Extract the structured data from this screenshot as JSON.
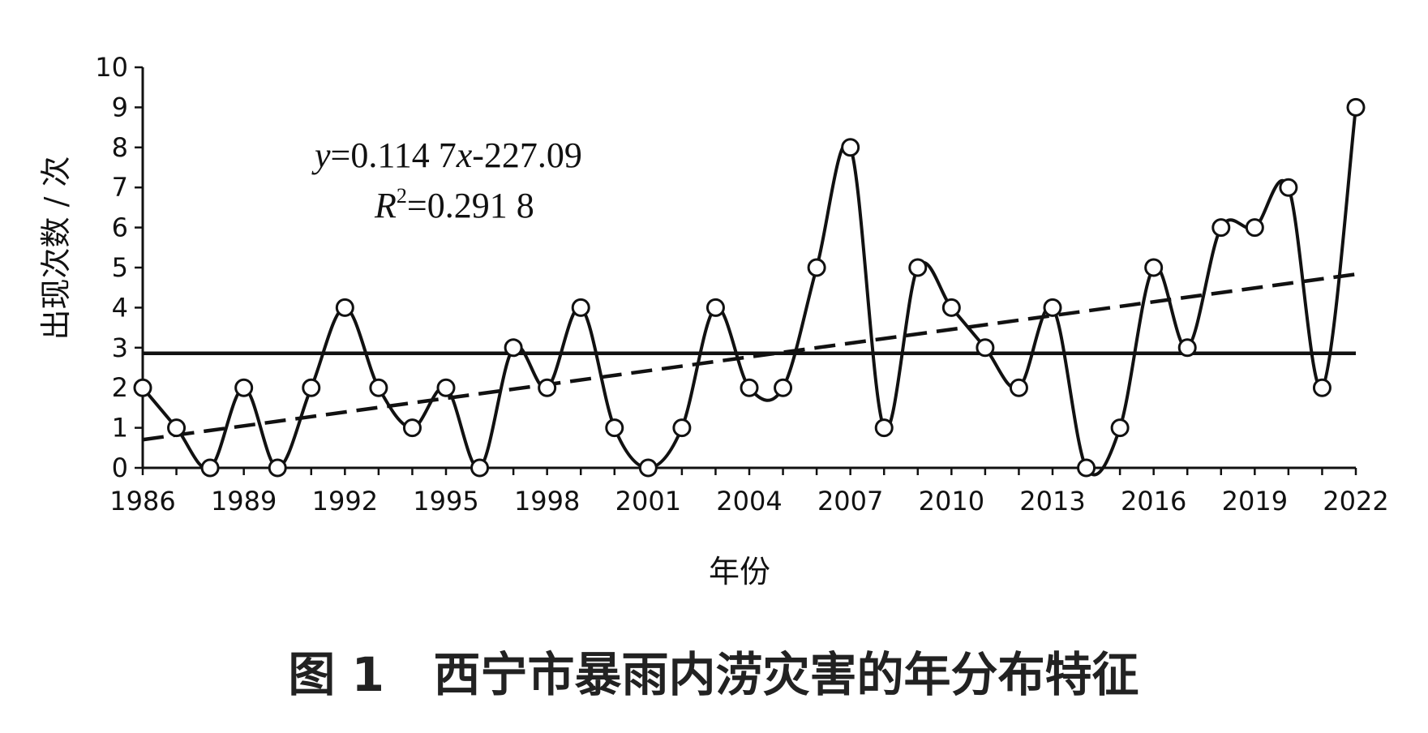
{
  "figure_caption": "图 1   西宁市暴雨内涝灾害的年分布特征",
  "chart_data": {
    "type": "line",
    "title": "",
    "xlabel": "年份",
    "ylabel": "出现次数 / 次",
    "x": [
      1986,
      1987,
      1988,
      1989,
      1990,
      1991,
      1992,
      1993,
      1994,
      1995,
      1996,
      1997,
      1998,
      1999,
      2000,
      2001,
      2002,
      2003,
      2004,
      2005,
      2006,
      2007,
      2008,
      2009,
      2010,
      2011,
      2012,
      2013,
      2014,
      2015,
      2016,
      2017,
      2018,
      2019,
      2020,
      2021,
      2022
    ],
    "series": [
      {
        "values": [
          2,
          1,
          0,
          2,
          0,
          2,
          4,
          2,
          1,
          2,
          0,
          3,
          2,
          4,
          1,
          0,
          1,
          4,
          2,
          2,
          5,
          8,
          1,
          5,
          4,
          3,
          2,
          4,
          0,
          1,
          5,
          3,
          6,
          6,
          7,
          2,
          9
        ],
        "style": "smooth-line-with-open-circles"
      }
    ],
    "mean_line": 2.86,
    "trend_line": {
      "slope": 0.1147,
      "intercept": -227.09,
      "equation_parts": [
        "y",
        "=0.114 7",
        "x",
        "-227.09"
      ],
      "r2_parts": [
        "R",
        "2",
        "=0.291 8"
      ]
    },
    "xlim": [
      1986,
      2022
    ],
    "ylim": [
      0,
      10
    ],
    "x_ticks": [
      1986,
      1989,
      1992,
      1995,
      1998,
      2001,
      2004,
      2007,
      2010,
      2013,
      2016,
      2019,
      2022
    ],
    "y_ticks": [
      0,
      1,
      2,
      3,
      4,
      5,
      6,
      7,
      8,
      9,
      10
    ],
    "grid": false,
    "legend": "none",
    "colors": {
      "line": "#111111",
      "marker_fill": "#ffffff",
      "mean_line": "#111111",
      "trend_line": "#111111"
    }
  }
}
